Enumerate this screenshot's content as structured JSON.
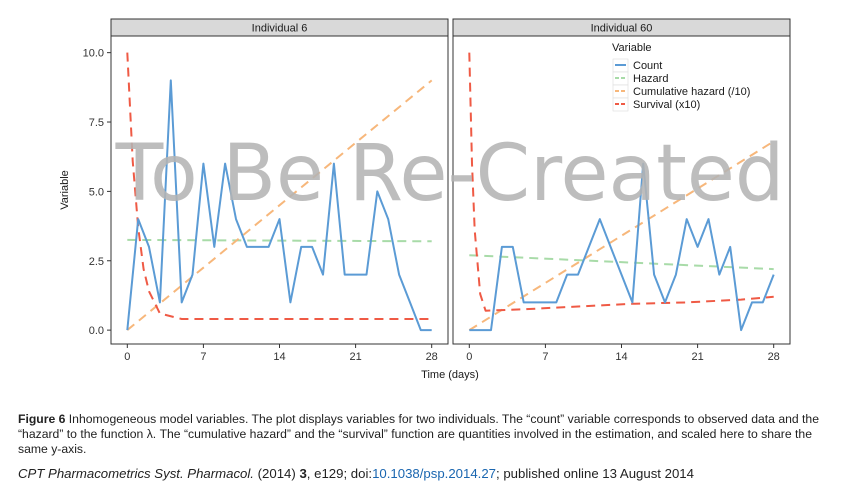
{
  "chart_data": {
    "type": "line",
    "xlabel": "Time (days)",
    "ylabel": "Variable",
    "xlim": [
      -1.5,
      29.5
    ],
    "ylim": [
      -0.5,
      10.6
    ],
    "x_ticks": [
      0,
      7,
      14,
      21,
      28
    ],
    "y_ticks": [
      0,
      2.5,
      5,
      7.5,
      10
    ],
    "y_tick_labels": [
      "0.0",
      "2.5",
      "5.0",
      "7.5",
      "10.0"
    ],
    "x_tick_labels": [
      "0",
      "7",
      "14",
      "21",
      "28"
    ],
    "grid": false,
    "legend": {
      "title": "Variable",
      "placement": "inside-top-right of second panel",
      "entries": [
        "Count",
        "Hazard",
        "Cumulative hazard (/10)",
        "Survival (x10)"
      ]
    },
    "panels": [
      {
        "title": "Individual 6",
        "series": [
          {
            "name": "Count",
            "color": "#5b9bd5",
            "style": "solid",
            "x": [
              0,
              1,
              2,
              3,
              4,
              5,
              6,
              7,
              8,
              9,
              10,
              11,
              12,
              13,
              14,
              15,
              16,
              17,
              18,
              19,
              20,
              21,
              22,
              23,
              24,
              25,
              26,
              27,
              28
            ],
            "y": [
              0,
              4,
              3,
              1,
              9,
              1,
              2,
              6,
              3,
              6,
              4,
              3,
              3,
              3,
              4,
              1,
              3,
              3,
              2,
              6,
              2,
              2,
              2,
              5,
              4,
              2,
              1,
              0,
              0
            ]
          },
          {
            "name": "Hazard",
            "color": "#a8dba8",
            "style": "dashed",
            "x": [
              0,
              28
            ],
            "y": [
              3.25,
              3.2
            ]
          },
          {
            "name": "Cumulative hazard (/10)",
            "color": "#f7b77b",
            "style": "dashed",
            "x": [
              0,
              28
            ],
            "y": [
              0,
              9.0
            ]
          },
          {
            "name": "Survival (x10)",
            "color": "#ef5a45",
            "style": "dashed",
            "x": [
              0,
              0.5,
              1,
              1.5,
              2,
              3,
              5,
              10,
              15,
              20,
              25,
              28
            ],
            "y": [
              10,
              6.1,
              3.7,
              2.2,
              1.4,
              0.6,
              0.4,
              0.4,
              0.4,
              0.4,
              0.4,
              0.4
            ]
          }
        ]
      },
      {
        "title": "Individual 60",
        "series": [
          {
            "name": "Count",
            "color": "#5b9bd5",
            "style": "solid",
            "x": [
              0,
              1,
              2,
              3,
              4,
              5,
              6,
              7,
              8,
              9,
              10,
              11,
              12,
              13,
              14,
              15,
              16,
              17,
              18,
              19,
              20,
              21,
              22,
              23,
              24,
              25,
              26,
              27,
              28
            ],
            "y": [
              0,
              0,
              0,
              3,
              3,
              1,
              1,
              1,
              1,
              2,
              2,
              3,
              4,
              3,
              2,
              1,
              6,
              2,
              1,
              2,
              4,
              3,
              4,
              2,
              3,
              0,
              1,
              1,
              2
            ]
          },
          {
            "name": "Hazard",
            "color": "#a8dba8",
            "style": "dashed",
            "x": [
              0,
              28
            ],
            "y": [
              2.7,
              2.2
            ]
          },
          {
            "name": "Cumulative hazard (/10)",
            "color": "#f7b77b",
            "style": "dashed",
            "x": [
              0,
              28
            ],
            "y": [
              0,
              6.8
            ]
          },
          {
            "name": "Survival (x10)",
            "color": "#ef5a45",
            "style": "dashed",
            "x": [
              0,
              0.25,
              0.5,
              1,
              1.5,
              5,
              10,
              15,
              20,
              25,
              28
            ],
            "y": [
              10,
              6.0,
              3.6,
              1.3,
              0.7,
              0.75,
              0.85,
              0.95,
              1.0,
              1.1,
              1.2
            ]
          }
        ]
      }
    ]
  },
  "watermark": "To Be Re-Created",
  "caption": {
    "label": "Figure 6",
    "text": "Inhomogeneous model variables. The plot displays variables for two individuals. The “count” variable corresponds to observed data and the “hazard” to the function λ. The “cumulative hazard” and the “survival” function are quantities involved in the estimation, and scaled here to share the same y-axis."
  },
  "citation": {
    "journal": "CPT Pharmacometrics Syst. Pharmacol.",
    "year": "(2014)",
    "volume": "3",
    "article": ", e129; doi:",
    "doi": "10.1038/psp.2014.27",
    "published": "; published online 13 August 2014"
  }
}
